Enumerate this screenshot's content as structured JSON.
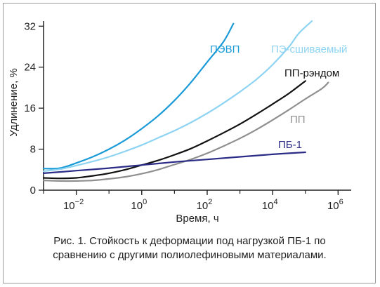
{
  "chart_data": {
    "type": "line",
    "xscale": "log",
    "xlabel": "Время, ч",
    "ylabel": "Удлинение, %",
    "xlim_log10": [
      -3,
      6.4
    ],
    "ylim": [
      0,
      33
    ],
    "yticks": [
      0,
      8,
      16,
      24,
      32
    ],
    "xticks": [
      {
        "base": "10",
        "exp": "−2",
        "log10": -2
      },
      {
        "base": "10",
        "exp": "0",
        "log10": 0
      },
      {
        "base": "10",
        "exp": "2",
        "log10": 2
      },
      {
        "base": "10",
        "exp": "4",
        "log10": 4
      },
      {
        "base": "10",
        "exp": "6",
        "log10": 6
      }
    ],
    "series": [
      {
        "name": "ПЭВП",
        "color": "#1a9bd7",
        "points": [
          [
            -3,
            4.2
          ],
          [
            -2.5,
            4.3
          ],
          [
            -2,
            5.3
          ],
          [
            -1.5,
            6.5
          ],
          [
            -1,
            8
          ],
          [
            -0.5,
            9.8
          ],
          [
            0,
            12
          ],
          [
            0.5,
            14.5
          ],
          [
            1,
            17.5
          ],
          [
            1.5,
            21
          ],
          [
            2,
            25
          ],
          [
            2.5,
            29
          ],
          [
            2.8,
            32.5
          ]
        ]
      },
      {
        "name": "ПЭ-сшиваемый",
        "color": "#8ed4f2",
        "points": [
          [
            -3,
            3.7
          ],
          [
            -2.5,
            4.1
          ],
          [
            -2,
            4.8
          ],
          [
            -1.5,
            5.6
          ],
          [
            -1,
            6.5
          ],
          [
            -0.5,
            7.6
          ],
          [
            0,
            8.8
          ],
          [
            0.5,
            10.2
          ],
          [
            1,
            11.6
          ],
          [
            1.5,
            13.2
          ],
          [
            2,
            15
          ],
          [
            2.5,
            17
          ],
          [
            3,
            19.2
          ],
          [
            3.5,
            21.6
          ],
          [
            4,
            24.5
          ],
          [
            4.5,
            28
          ],
          [
            4.8,
            30.6
          ],
          [
            5.2,
            33
          ]
        ]
      },
      {
        "name": "ПП-рэндом",
        "color": "#111111",
        "points": [
          [
            -3,
            2.4
          ],
          [
            -2.5,
            2.3
          ],
          [
            -2,
            2.4
          ],
          [
            -1.5,
            2.8
          ],
          [
            -1,
            3.3
          ],
          [
            -0.5,
            4
          ],
          [
            0,
            4.9
          ],
          [
            0.5,
            5.8
          ],
          [
            1,
            6.9
          ],
          [
            1.5,
            8.1
          ],
          [
            2,
            9.6
          ],
          [
            2.5,
            11.2
          ],
          [
            3,
            12.9
          ],
          [
            3.5,
            14.8
          ],
          [
            4,
            16.8
          ],
          [
            4.5,
            18.9
          ],
          [
            5,
            21.3
          ]
        ]
      },
      {
        "name": "ПП",
        "color": "#8f8f8f",
        "points": [
          [
            -3,
            1.9
          ],
          [
            -2.5,
            1.8
          ],
          [
            -2,
            1.8
          ],
          [
            -1.5,
            1.9
          ],
          [
            -1,
            2.2
          ],
          [
            -0.5,
            2.6
          ],
          [
            0,
            3.2
          ],
          [
            0.5,
            4
          ],
          [
            1,
            5
          ],
          [
            1.5,
            6
          ],
          [
            2,
            7.2
          ],
          [
            2.5,
            8.6
          ],
          [
            3,
            10.1
          ],
          [
            3.5,
            11.8
          ],
          [
            4,
            13.7
          ],
          [
            4.5,
            15.7
          ],
          [
            5,
            17.8
          ],
          [
            5.5,
            19.8
          ],
          [
            5.7,
            21
          ]
        ]
      },
      {
        "name": "ПБ-1",
        "color": "#2b2b88",
        "points": [
          [
            -3,
            3.3
          ],
          [
            -2,
            3.8
          ],
          [
            -1,
            4.3
          ],
          [
            0,
            4.9
          ],
          [
            1,
            5.5
          ],
          [
            2,
            6
          ],
          [
            3,
            6.5
          ],
          [
            4,
            7
          ],
          [
            5,
            7.4
          ]
        ]
      }
    ],
    "labels": [
      {
        "text": "ПЭВП",
        "color": "#1a9bd7"
      },
      {
        "text": "ПЭ-сшиваемый",
        "color": "#8ed4f2"
      },
      {
        "text": "ПП-рэндом",
        "color": "#111111"
      },
      {
        "text": "ПП",
        "color": "#8f8f8f"
      },
      {
        "text": "ПБ-1",
        "color": "#2b2b88"
      }
    ]
  },
  "caption": "Рис. 1. Стойкость к деформации под нагрузкой ПБ-1 по сравнению с другими полиолефиновыми материалами."
}
